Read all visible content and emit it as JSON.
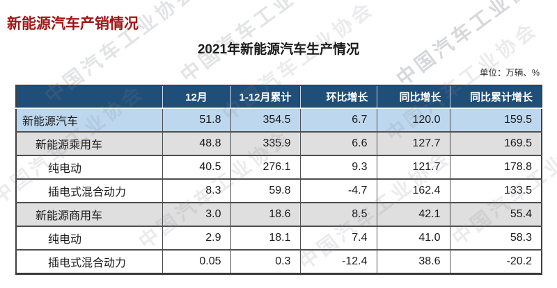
{
  "page_title": "新能源汽车产销情况",
  "watermark": {
    "text": "中国汽车工业协会"
  },
  "colors": {
    "title_red": "#a31515",
    "header_bg": "#1f4e79",
    "header_text": "#ffffff",
    "row_highlight_blue": "#bdd7ee",
    "row_highlight_gray": "#dfdfdf",
    "border": "#4e4e4e"
  },
  "chart_data": {
    "type": "table",
    "title": "2021年新能源汽车生产情况",
    "unit": "单位：万辆、%",
    "columns": [
      "",
      "12月",
      "1-12月累计",
      "环比增长",
      "同比增长",
      "同比累计增长"
    ],
    "rows": [
      {
        "label": "新能源汽车",
        "indent": 0,
        "highlight": "blue",
        "values": [
          "51.8",
          "354.5",
          "6.7",
          "120.0",
          "159.5"
        ]
      },
      {
        "label": "新能源乘用车",
        "indent": 1,
        "highlight": "gray",
        "values": [
          "48.8",
          "335.9",
          "6.6",
          "127.7",
          "169.5"
        ]
      },
      {
        "label": "纯电动",
        "indent": 2,
        "highlight": "white",
        "values": [
          "40.5",
          "276.1",
          "9.3",
          "121.7",
          "178.8"
        ]
      },
      {
        "label": "插电式混合动力",
        "indent": 2,
        "highlight": "white",
        "values": [
          "8.3",
          "59.8",
          "-4.7",
          "162.4",
          "133.5"
        ]
      },
      {
        "label": "新能源商用车",
        "indent": 1,
        "highlight": "gray",
        "values": [
          "3.0",
          "18.6",
          "8.5",
          "42.1",
          "55.4"
        ]
      },
      {
        "label": "纯电动",
        "indent": 2,
        "highlight": "white",
        "values": [
          "2.9",
          "18.1",
          "7.4",
          "41.0",
          "58.3"
        ]
      },
      {
        "label": "插电式混合动力",
        "indent": 2,
        "highlight": "white",
        "values": [
          "0.05",
          "0.3",
          "-12.4",
          "38.6",
          "-20.2"
        ]
      }
    ]
  }
}
